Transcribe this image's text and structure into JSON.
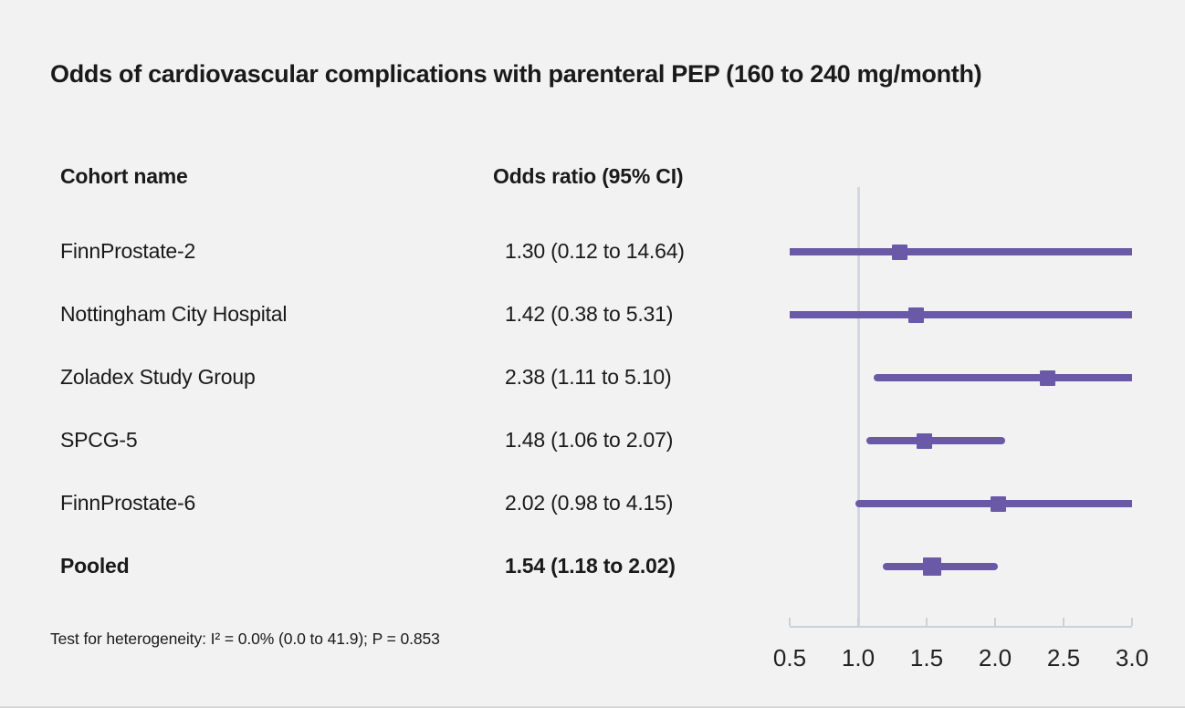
{
  "page": {
    "background": "#f2f2f2",
    "title": "Odds of cardiovascular complications with parenteral PEP (160 to 240 mg/month)",
    "footnote": "Test for heterogeneity: I² = 0.0% (0.0 to 41.9); P = 0.853"
  },
  "table": {
    "cohort_header": "Cohort name",
    "or_header": "Odds ratio (95% CI)"
  },
  "chart_data": {
    "type": "forest",
    "title": "Odds of cardiovascular complications with parenteral PEP (160 to 240 mg/month)",
    "xlabel": "",
    "xlim": [
      0.5,
      3.0
    ],
    "reference_line": 1.0,
    "grid": false,
    "legend": "none",
    "x_ticks": [
      {
        "label": "0.5",
        "value": 0.5
      },
      {
        "label": "1.0",
        "value": 1.0
      },
      {
        "label": "1.5",
        "value": 1.5
      },
      {
        "label": "2.0",
        "value": 2.0
      },
      {
        "label": "2.5",
        "value": 2.5
      },
      {
        "label": "3.0",
        "value": 3.0
      }
    ],
    "rows": [
      {
        "cohort": "FinnProstate-2",
        "or_text": "1.30 (0.12 to 14.64)",
        "estimate": 1.3,
        "ci_low": 0.12,
        "ci_high": 14.64,
        "bold": false
      },
      {
        "cohort": "Nottingham City Hospital",
        "or_text": "1.42 (0.38 to 5.31)",
        "estimate": 1.42,
        "ci_low": 0.38,
        "ci_high": 5.31,
        "bold": false
      },
      {
        "cohort": "Zoladex Study Group",
        "or_text": "2.38 (1.11 to 5.10)",
        "estimate": 2.38,
        "ci_low": 1.11,
        "ci_high": 5.1,
        "bold": false
      },
      {
        "cohort": "SPCG-5",
        "or_text": "1.48 (1.06 to 2.07)",
        "estimate": 1.48,
        "ci_low": 1.06,
        "ci_high": 2.07,
        "bold": false
      },
      {
        "cohort": "FinnProstate-6",
        "or_text": "2.02 (0.98 to 4.15)",
        "estimate": 2.02,
        "ci_low": 0.98,
        "ci_high": 4.15,
        "bold": false
      },
      {
        "cohort": "Pooled",
        "or_text": "1.54 (1.18 to 2.02)",
        "estimate": 1.54,
        "ci_low": 1.18,
        "ci_high": 2.02,
        "bold": true
      }
    ],
    "heterogeneity_note": "Test for heterogeneity: I² = 0.0% (0.0 to 41.9); P = 0.853",
    "colors": {
      "marker": "#6a59a6",
      "axis": "#ccd1d8",
      "reference_line": "#d3d7e0",
      "text": "#1a1a1a",
      "background": "#f2f2f2"
    }
  }
}
